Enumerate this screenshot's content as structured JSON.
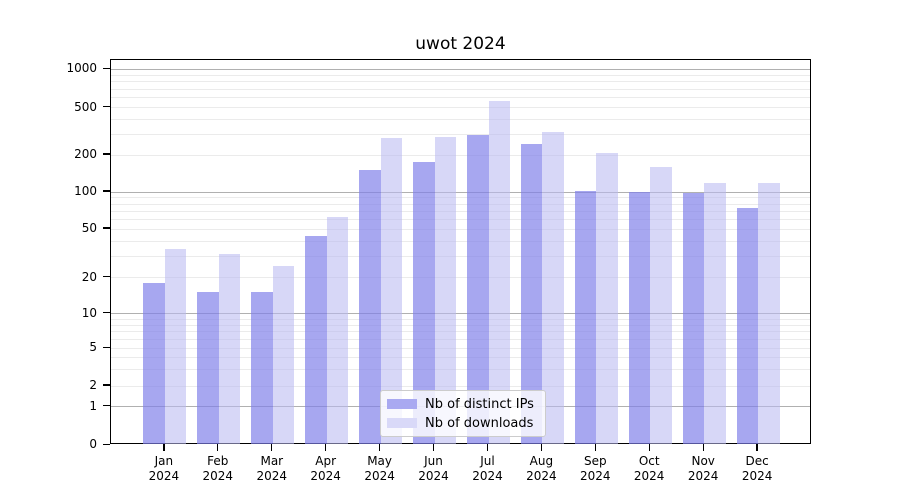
{
  "chart_data": {
    "type": "bar",
    "title": "uwot 2024",
    "categories": [
      "Jan",
      "Feb",
      "Mar",
      "Apr",
      "May",
      "Jun",
      "Jul",
      "Aug",
      "Sep",
      "Oct",
      "Nov",
      "Dec"
    ],
    "year_label": "2024",
    "series": [
      {
        "name": "Nb of distinct IPs",
        "color": "#a9a9f1",
        "fill_rgba": "rgba(125,125,233,0.68)",
        "values": [
          18,
          15,
          15,
          44,
          149,
          176,
          295,
          248,
          101,
          100,
          98,
          74
        ]
      },
      {
        "name": "Nb of downloads",
        "color": "#d9d9f8",
        "fill_rgba": "rgba(185,185,241,0.57)",
        "values": [
          34,
          31,
          25,
          62,
          276,
          282,
          560,
          310,
          207,
          160,
          118,
          118
        ]
      }
    ],
    "yscale": "symlog",
    "y_ticks": [
      0,
      1,
      2,
      5,
      10,
      20,
      50,
      100,
      200,
      500,
      1000
    ],
    "ylim": [
      0,
      1200
    ],
    "xlabel": "",
    "ylabel": "",
    "grid": true,
    "legend_position": "lower center"
  }
}
